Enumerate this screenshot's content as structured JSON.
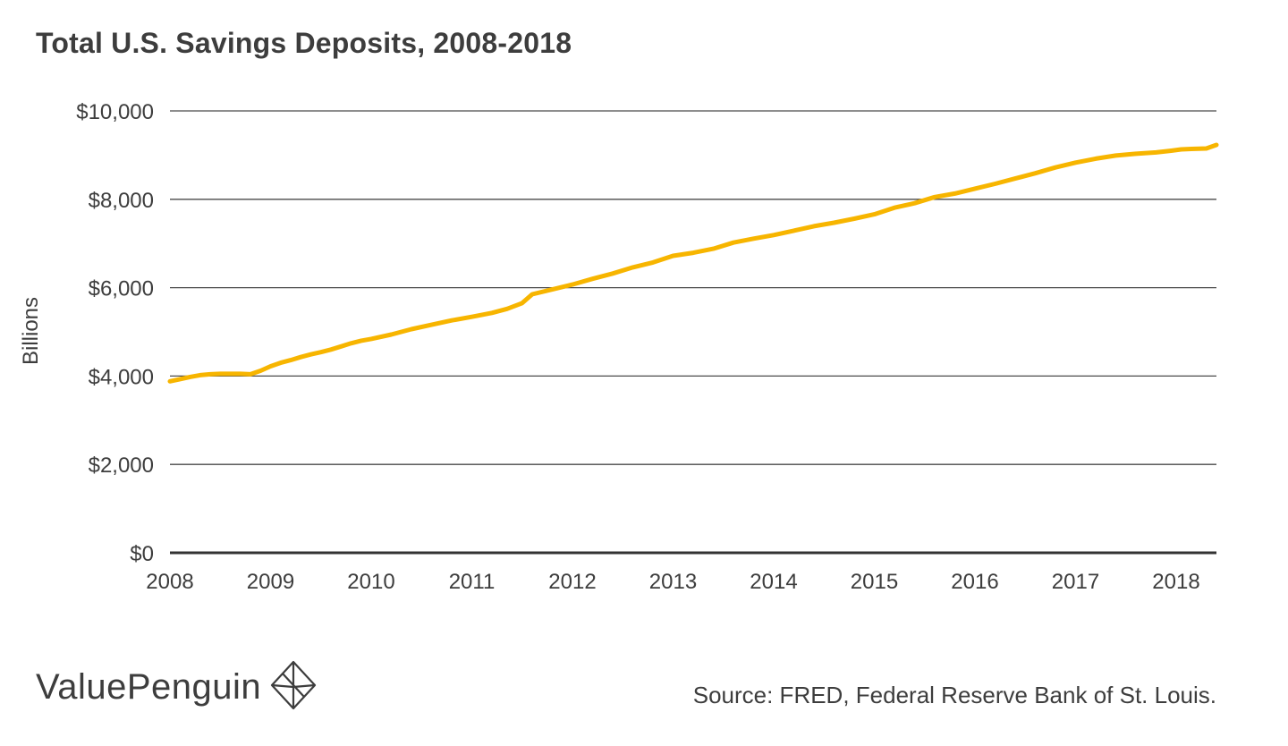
{
  "chart_data": {
    "type": "line",
    "title": "Total U.S. Savings Deposits, 2008-2018",
    "xlabel": "",
    "ylabel": "Billions",
    "ylim": [
      0,
      10000
    ],
    "xlim": [
      2008,
      2018.4
    ],
    "y_ticks": [
      {
        "value": 0,
        "label": "$0"
      },
      {
        "value": 2000,
        "label": "$2,000"
      },
      {
        "value": 4000,
        "label": "$4,000"
      },
      {
        "value": 6000,
        "label": "$6,000"
      },
      {
        "value": 8000,
        "label": "$8,000"
      },
      {
        "value": 10000,
        "label": "$10,000"
      }
    ],
    "x_ticks": [
      "2008",
      "2009",
      "2010",
      "2011",
      "2012",
      "2013",
      "2014",
      "2015",
      "2016",
      "2017",
      "2018"
    ],
    "grid": true,
    "legend": "none",
    "series": [
      {
        "color": "#f7b500",
        "x": [
          2008.0,
          2008.1,
          2008.2,
          2008.3,
          2008.4,
          2008.5,
          2008.6,
          2008.7,
          2008.8,
          2008.9,
          2009.0,
          2009.1,
          2009.2,
          2009.3,
          2009.4,
          2009.5,
          2009.6,
          2009.7,
          2009.8,
          2009.9,
          2010.0,
          2010.2,
          2010.4,
          2010.6,
          2010.8,
          2011.0,
          2011.2,
          2011.35,
          2011.5,
          2011.6,
          2011.8,
          2012.0,
          2012.2,
          2012.4,
          2012.6,
          2012.8,
          2013.0,
          2013.2,
          2013.4,
          2013.6,
          2013.8,
          2014.0,
          2014.2,
          2014.4,
          2014.6,
          2014.8,
          2015.0,
          2015.2,
          2015.4,
          2015.6,
          2015.8,
          2016.0,
          2016.2,
          2016.4,
          2016.6,
          2016.8,
          2017.0,
          2017.2,
          2017.4,
          2017.6,
          2017.8,
          2017.95,
          2018.05,
          2018.15,
          2018.3,
          2018.4
        ],
        "values": [
          3880,
          3930,
          3980,
          4020,
          4040,
          4050,
          4050,
          4050,
          4040,
          4120,
          4220,
          4300,
          4360,
          4430,
          4490,
          4540,
          4600,
          4670,
          4740,
          4800,
          4840,
          4940,
          5060,
          5160,
          5260,
          5340,
          5430,
          5520,
          5650,
          5850,
          5960,
          6070,
          6200,
          6320,
          6460,
          6570,
          6720,
          6790,
          6880,
          7020,
          7110,
          7190,
          7290,
          7390,
          7470,
          7560,
          7660,
          7810,
          7910,
          8050,
          8130,
          8240,
          8350,
          8470,
          8590,
          8720,
          8830,
          8920,
          8990,
          9030,
          9060,
          9100,
          9130,
          9140,
          9150,
          9230
        ]
      }
    ]
  },
  "branding": {
    "name": "ValuePenguin",
    "logo_icon": "valuepenguin-diamond-logo-icon"
  },
  "source": "Source: FRED, Federal Reserve Bank of St. Louis."
}
